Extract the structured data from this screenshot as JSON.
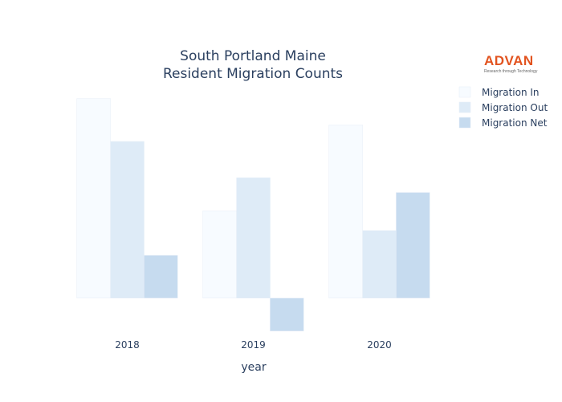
{
  "chart_data": {
    "type": "bar",
    "title_lines": [
      "South Portland Maine",
      "Resident Migration Counts"
    ],
    "xlabel": "year",
    "ylabel": "",
    "categories": [
      "2018",
      "2019",
      "2020"
    ],
    "series": [
      {
        "name": "Migration In",
        "values": [
          1210,
          530,
          1050
        ],
        "color": "#f7fbff"
      },
      {
        "name": "Migration Out",
        "values": [
          950,
          730,
          410
        ],
        "color": "#deebf7"
      },
      {
        "name": "Migration Net",
        "values": [
          260,
          -200,
          640
        ],
        "color": "#c6dbef"
      }
    ],
    "ylim": [
      -230,
      1320
    ],
    "grid": false,
    "legend_position": "top-right"
  },
  "logo": {
    "name": "ADVAN",
    "tagline": "Research through Technology"
  }
}
